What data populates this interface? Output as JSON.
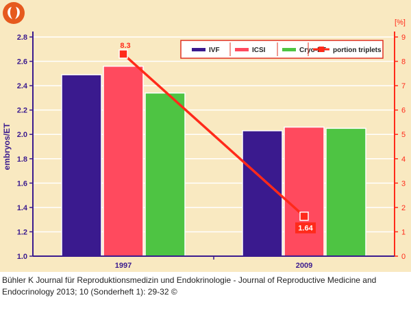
{
  "logo": {
    "name": "journal-logo"
  },
  "chart_data": {
    "type": "bar",
    "categories": [
      "1997",
      "2009"
    ],
    "series": [
      {
        "name": "IVF",
        "color": "#3a1a8e",
        "values": [
          2.49,
          2.03
        ]
      },
      {
        "name": "ICSI",
        "color": "#ff4a5e",
        "values": [
          2.56,
          2.06
        ]
      },
      {
        "name": "Cryo-ET",
        "color": "#4ec443",
        "values": [
          2.34,
          2.05
        ]
      }
    ],
    "line_series": {
      "name": "portion triplets",
      "color": "#ff2a1a",
      "axis": "right",
      "values": [
        8.3,
        1.64
      ],
      "labels": [
        "8.3",
        "1.64"
      ]
    },
    "ylabel": "embryos/ET",
    "ylim": [
      1.0,
      2.8
    ],
    "yticks": [
      "1.0",
      "1.2",
      "1.4",
      "1.6",
      "1.8",
      "2.0",
      "2.2",
      "2.4",
      "2.6",
      "2.8"
    ],
    "y2label": "[%]",
    "y2lim": [
      0,
      9
    ],
    "y2ticks": [
      "0",
      "1",
      "2",
      "3",
      "4",
      "5",
      "6",
      "7",
      "8",
      "9"
    ],
    "legend_position": "top-right",
    "axis_color": "#3a1a8e",
    "axis2_color": "#ff2a1a"
  },
  "caption": "Bühler K Journal für Reproduktionsmedizin und Endokrinologie - Journal of Reproductive Medicine and Endocrinology 2013; 10 (Sonderheft 1): 29-32 ©"
}
